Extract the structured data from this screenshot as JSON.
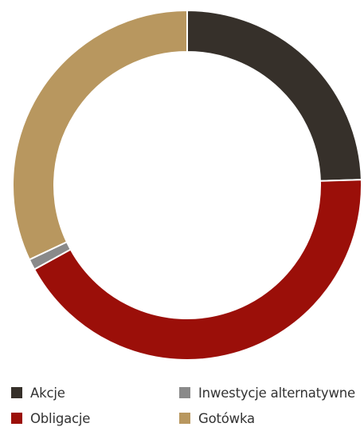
{
  "chart_data": {
    "type": "pie",
    "donut": true,
    "categories": [
      "Akcje",
      "Obligacje",
      "Inwestycje alternatywne",
      "Gotówka"
    ],
    "values": [
      24.5,
      42.5,
      1.0,
      32.0
    ],
    "colors": [
      "#36302a",
      "#9b0f09",
      "#8a8a8a",
      "#b8975f"
    ],
    "legend_placement": "bottom",
    "legend": [
      {
        "label": "Akcje",
        "color": "#36302a"
      },
      {
        "label": "Inwestycje alternatywne",
        "color": "#8a8a8a"
      },
      {
        "label": "Obligacje",
        "color": "#9b0f09"
      },
      {
        "label": "Gotówka",
        "color": "#b8975f"
      }
    ]
  }
}
